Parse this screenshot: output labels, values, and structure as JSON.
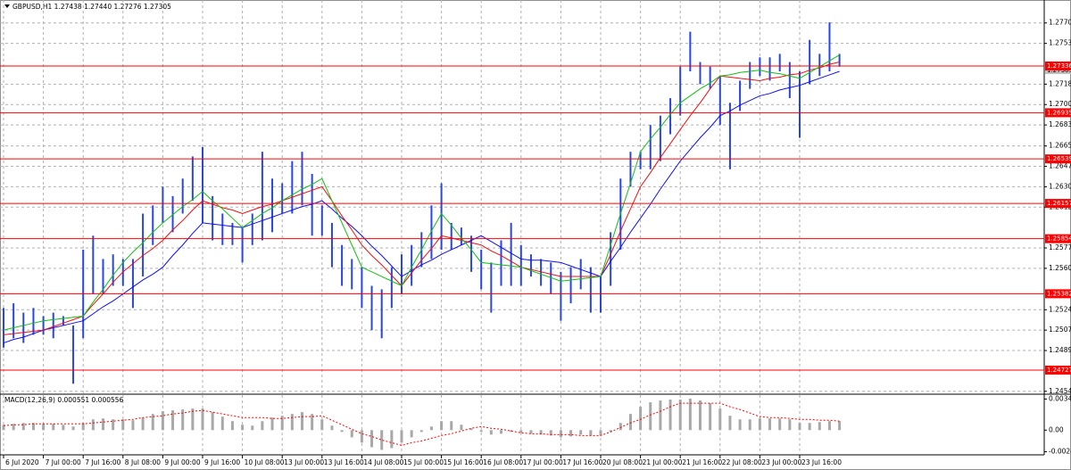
{
  "chart_data": {
    "type": "ohlc",
    "title": "GBPUSD,H1  1.27438 1.27440 1.27276 1.27305",
    "categories": [
      "6 Jul 2020",
      null,
      null,
      null,
      "7 Jul 00:00",
      null,
      null,
      null,
      "7 Jul 16:00",
      null,
      null,
      null,
      "8 Jul 08:00",
      null,
      null,
      null,
      "9 Jul 00:00",
      null,
      null,
      null,
      "9 Jul 16:00",
      null,
      null,
      null,
      "10 Jul 08:00",
      null,
      null,
      null,
      "13 Jul 00:00",
      null,
      null,
      null,
      "13 Jul 16:00",
      null,
      null,
      null,
      "14 Jul 08:00",
      null,
      null,
      null,
      "15 Jul 00:00",
      null,
      null,
      null,
      "15 Jul 16:00",
      null,
      null,
      null,
      "16 Jul 08:00",
      null,
      null,
      null,
      "17 Jul 00:00",
      null,
      null,
      null,
      "17 Jul 16:00",
      null,
      null,
      null,
      "20 Jul 08:00",
      null,
      null,
      null,
      "21 Jul 00:00",
      null,
      null,
      null,
      "21 Jul 16:00",
      null,
      null,
      null,
      "22 Jul 08:00",
      null,
      null,
      null,
      "23 Jul 00:00",
      null,
      null,
      null,
      "23 Jul 16:00",
      null,
      null,
      null,
      null
    ],
    "high": [
      1.2526,
      1.253,
      1.2522,
      1.2526,
      1.2519,
      1.2522,
      1.2519,
      1.2511,
      1.2576,
      1.2588,
      1.2568,
      1.2572,
      1.2568,
      1.2568,
      1.2607,
      1.2614,
      1.263,
      1.2622,
      1.2637,
      1.2656,
      1.2664,
      1.2622,
      1.2607,
      1.2599,
      1.2595,
      1.2607,
      1.266,
      1.2637,
      1.2633,
      1.2652,
      1.266,
      1.2641,
      1.2614,
      1.2599,
      1.258,
      1.2568,
      1.2561,
      1.2545,
      1.2542,
      1.2561,
      1.2572,
      1.258,
      1.2591,
      1.2614,
      1.2633,
      1.2599,
      1.2595,
      1.2588,
      1.2576,
      1.2565,
      1.2584,
      1.2599,
      1.258,
      1.2572,
      1.2568,
      1.2565,
      1.2557,
      1.2561,
      1.2568,
      1.2561,
      1.2553,
      1.2591,
      1.2637,
      1.266,
      1.266,
      1.2683,
      1.2691,
      1.2706,
      1.2733,
      1.2763,
      1.2737,
      1.2733,
      1.2725,
      1.2702,
      1.2721,
      1.2737,
      1.2741,
      1.2741,
      1.2744,
      1.2737,
      1.2729,
      1.2756,
      1.2744,
      1.2771,
      1.2744
    ],
    "low": [
      1.2492,
      1.25,
      1.2496,
      1.2503,
      1.2503,
      1.25,
      1.2511,
      1.2461,
      1.25,
      1.2538,
      1.2538,
      1.2545,
      1.2545,
      1.2526,
      1.2553,
      1.258,
      1.2599,
      1.2591,
      1.2607,
      1.2618,
      1.2599,
      1.2584,
      1.258,
      1.258,
      1.2565,
      1.258,
      1.2584,
      1.2591,
      1.2607,
      1.2607,
      1.2614,
      1.2588,
      1.2588,
      1.2561,
      1.2545,
      1.2542,
      1.2526,
      1.2507,
      1.25,
      1.2526,
      1.2538,
      1.2545,
      1.2561,
      1.2568,
      1.2576,
      1.2576,
      1.258,
      1.2557,
      1.2542,
      1.2522,
      1.2545,
      1.2545,
      1.2545,
      1.2553,
      1.2545,
      1.2538,
      1.2515,
      1.253,
      1.2542,
      1.2522,
      1.2522,
      1.2545,
      1.2576,
      1.263,
      1.2645,
      1.2645,
      1.2652,
      1.2675,
      1.2691,
      1.2729,
      1.2718,
      1.2714,
      1.2683,
      1.2645,
      1.2695,
      1.2714,
      1.2725,
      1.2721,
      1.2729,
      1.2706,
      1.2672,
      1.2718,
      1.2725,
      1.2729,
      1.2733
    ],
    "color": "#2846e0",
    "moving_averages": [
      {
        "color": "#1010ee",
        "values": [
          1.2496,
          1.2499,
          1.2501,
          1.2504,
          1.2507,
          1.2509,
          1.2511,
          1.2513,
          1.2515,
          1.2521,
          1.2527,
          1.2532,
          1.2538,
          1.2544,
          1.255,
          1.2555,
          1.2561,
          1.2571,
          1.258,
          1.259,
          1.2599,
          1.2598,
          1.2597,
          1.2596,
          1.2595,
          1.2598,
          1.2601,
          1.2604,
          1.2607,
          1.261,
          1.2613,
          1.2615,
          1.2618,
          1.2611,
          1.2603,
          1.2596,
          1.2588,
          1.2579,
          1.2571,
          1.2562,
          1.2553,
          1.2558,
          1.2563,
          1.2567,
          1.2572,
          1.2576,
          1.258,
          1.2584,
          1.2588,
          1.2583,
          1.2578,
          1.2573,
          1.2568,
          1.2567,
          1.2567,
          1.2566,
          1.2565,
          1.2562,
          1.2559,
          1.2556,
          1.2553,
          1.2566,
          1.2578,
          1.2591,
          1.2603,
          1.2615,
          1.2628,
          1.264,
          1.2652,
          1.2662,
          1.2672,
          1.2681,
          1.2691,
          1.2695,
          1.27,
          1.2704,
          1.2708,
          1.271,
          1.2713,
          1.2715,
          1.2717,
          1.272,
          1.2723,
          1.2726,
          1.2729
        ]
      },
      {
        "color": "#ee1010",
        "values": [
          1.2503,
          1.2504,
          1.2505,
          1.2506,
          1.2507,
          1.251,
          1.2513,
          1.2516,
          1.2519,
          1.2529,
          1.2538,
          1.2548,
          1.2557,
          1.2564,
          1.2571,
          1.2577,
          1.2584,
          1.2593,
          1.2601,
          1.261,
          1.2618,
          1.2615,
          1.2612,
          1.261,
          1.2607,
          1.261,
          1.2613,
          1.2615,
          1.2618,
          1.2621,
          1.2624,
          1.2627,
          1.263,
          1.2618,
          1.2605,
          1.2593,
          1.258,
          1.2571,
          1.2563,
          1.2554,
          1.2545,
          1.2556,
          1.2567,
          1.2577,
          1.2588,
          1.2586,
          1.2584,
          1.2582,
          1.258,
          1.2575,
          1.2571,
          1.2566,
          1.2561,
          1.2559,
          1.2557,
          1.2555,
          1.2553,
          1.2553,
          1.2553,
          1.2553,
          1.2553,
          1.2572,
          1.2592,
          1.2611,
          1.263,
          1.2642,
          1.2655,
          1.2667,
          1.2679,
          1.2691,
          1.2702,
          1.2714,
          1.2725,
          1.2724,
          1.2723,
          1.2722,
          1.2721,
          1.2723,
          1.2724,
          1.2726,
          1.2727,
          1.273,
          1.2732,
          1.2735,
          1.2737
        ]
      },
      {
        "color": "#10c010",
        "values": [
          1.2507,
          1.2509,
          1.2511,
          1.2513,
          1.2515,
          1.2516,
          1.2517,
          1.2518,
          1.2519,
          1.2531,
          1.2542,
          1.2554,
          1.2565,
          1.2574,
          1.2582,
          1.2591,
          1.2599,
          1.2606,
          1.2613,
          1.2619,
          1.2626,
          1.2618,
          1.2611,
          1.2603,
          1.2595,
          1.2601,
          1.2607,
          1.2612,
          1.2618,
          1.2623,
          1.2628,
          1.2632,
          1.2637,
          1.2618,
          1.2599,
          1.258,
          1.2561,
          1.2557,
          1.2553,
          1.2549,
          1.2545,
          1.2561,
          1.2576,
          1.2592,
          1.2607,
          1.2597,
          1.2586,
          1.2576,
          1.2565,
          1.2564,
          1.2563,
          1.2562,
          1.2561,
          1.2558,
          1.2555,
          1.2552,
          1.2549,
          1.255,
          1.2551,
          1.2552,
          1.2553,
          1.258,
          1.2607,
          1.2633,
          1.266,
          1.2671,
          1.2681,
          1.2692,
          1.2702,
          1.2708,
          1.2714,
          1.2719,
          1.2725,
          1.2726,
          1.2728,
          1.2729,
          1.273,
          1.2728,
          1.2727,
          1.2725,
          1.2723,
          1.2728,
          1.2733,
          1.2738,
          1.2743
        ]
      }
    ],
    "ylim": [
      1.24528,
      1.27902
    ],
    "yticks": [
      1.27705,
      {
        "value": 1.2753,
        "label": "1.27530"
      },
      {
        "value": 1.2718,
        "label": "1.27180"
      },
      1.27005,
      {
        "value": 1.2683,
        "label": "1.26830"
      },
      {
        "value": 1.2665,
        "label": "1.26650"
      },
      1.26475,
      {
        "value": 1.263,
        "label": "1.26300"
      },
      1.26125,
      1.25775,
      {
        "value": 1.256,
        "label": "1.25600"
      },
      1.25245,
      {
        "value": 1.2507,
        "label": "1.25070"
      },
      1.24895,
      1.24545
    ],
    "grid": true,
    "levels": [
      1.27336,
      1.26935,
      1.26539,
      1.26157,
      1.25854,
      1.25382,
      1.24727
    ],
    "level_color": "#ff0000",
    "current_price": 1.27305,
    "macd": {
      "title": "MACD(12,26,9) 0.000551 0.000556",
      "histogram": [
        0.0006,
        0.0007,
        0.0008,
        0.0008,
        0.0007,
        0.0007,
        0.0006,
        0.0004,
        0.0008,
        0.0012,
        0.0013,
        0.0012,
        0.0012,
        0.0011,
        0.0014,
        0.0018,
        0.0021,
        0.0022,
        0.0023,
        0.0024,
        0.0024,
        0.002,
        0.0015,
        0.001,
        0.0006,
        0.0005,
        0.001,
        0.0014,
        0.0016,
        0.0018,
        0.002,
        0.0018,
        0.0012,
        0.0005,
        -0.0002,
        -0.0008,
        -0.0014,
        -0.0019,
        -0.0022,
        -0.002,
        -0.0014,
        -0.0008,
        -0.0002,
        0.0004,
        0.001,
        0.001,
        0.0006,
        0.0002,
        -0.0002,
        -0.0005,
        -0.0004,
        -0.0002,
        -0.0003,
        -0.0004,
        -0.0005,
        -0.0006,
        -0.0008,
        -0.0007,
        -0.0005,
        -0.0006,
        -0.0006,
        -0.0002,
        0.0008,
        0.0018,
        0.0026,
        0.0031,
        0.0033,
        0.0034,
        0.0034,
        0.0035,
        0.0033,
        0.003,
        0.0024,
        0.0016,
        0.0012,
        0.0012,
        0.0013,
        0.0013,
        0.0013,
        0.0012,
        0.0008,
        0.0008,
        0.0009,
        0.001,
        0.001
      ],
      "signal": [
        0.0005,
        0.0006,
        0.0006,
        0.0007,
        0.0007,
        0.0007,
        0.0007,
        0.0007,
        0.0007,
        0.0008,
        0.0009,
        0.001,
        0.0011,
        0.0012,
        0.0014,
        0.0015,
        0.0016,
        0.0018,
        0.0019,
        0.0021,
        0.0022,
        0.002,
        0.0018,
        0.0016,
        0.0014,
        0.0014,
        0.0014,
        0.0013,
        0.0013,
        0.0014,
        0.0015,
        0.0015,
        0.0016,
        0.0011,
        0.0006,
        0.0001,
        -0.0004,
        -0.0007,
        -0.0011,
        -0.0014,
        -0.0017,
        -0.0014,
        -0.0012,
        -0.0009,
        -0.0006,
        -0.0004,
        -0.0001,
        0.0002,
        0.0004,
        0.0002,
        0.0001,
        -0.0001,
        -0.0003,
        -0.0004,
        -0.0004,
        -0.0005,
        -0.0005,
        -0.0005,
        -0.0006,
        -0.0006,
        -0.0006,
        -0.0002,
        0.0003,
        0.0008,
        0.0012,
        0.0017,
        0.0021,
        0.0026,
        0.003,
        0.003,
        0.003,
        0.003,
        0.003,
        0.0026,
        0.0023,
        0.0019,
        0.0015,
        0.0014,
        0.0014,
        0.0013,
        0.0012,
        0.0012,
        0.0011,
        0.0011,
        0.001
      ],
      "ylim": [
        -0.00275,
        0.0039
      ],
      "yticks": [
        0.003461,
        {
          "value": 0,
          "label": "0.00"
        },
        -0.002406
      ],
      "histogram_color": "#a8a8a8",
      "signal_color": "#ff0000"
    }
  }
}
